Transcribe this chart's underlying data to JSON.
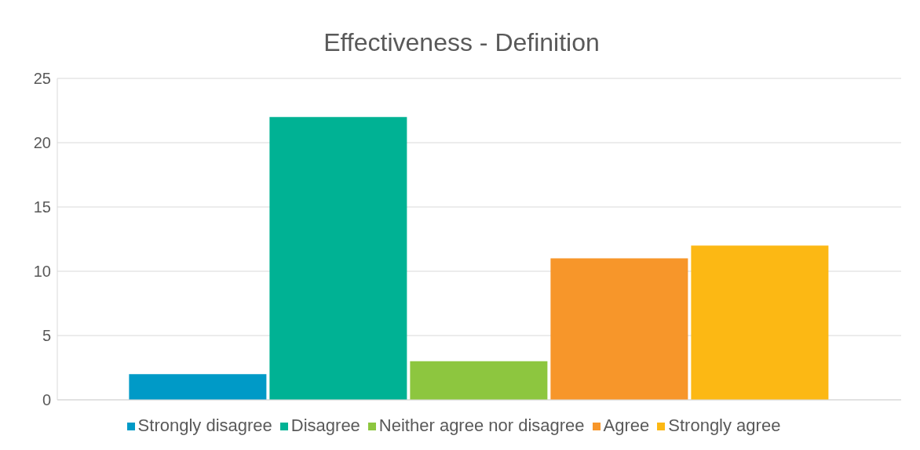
{
  "chart_data": {
    "type": "bar",
    "title": "Effectiveness - Definition",
    "categories": [
      null
    ],
    "series": [
      {
        "name": "Strongly disagree",
        "color": "#009ac7",
        "values": [
          2
        ]
      },
      {
        "name": "Disagree",
        "color": "#00b294",
        "values": [
          22
        ]
      },
      {
        "name": "Neither agree nor disagree",
        "color": "#8dc63f",
        "values": [
          3
        ]
      },
      {
        "name": "Agree",
        "color": "#f7962a",
        "values": [
          11
        ]
      },
      {
        "name": "Strongly agree",
        "color": "#fcb814",
        "values": [
          12
        ]
      }
    ],
    "ylim": [
      0,
      25
    ],
    "yticks": [
      0,
      5,
      10,
      15,
      20,
      25
    ],
    "grid": "y",
    "legend": "bottom"
  }
}
